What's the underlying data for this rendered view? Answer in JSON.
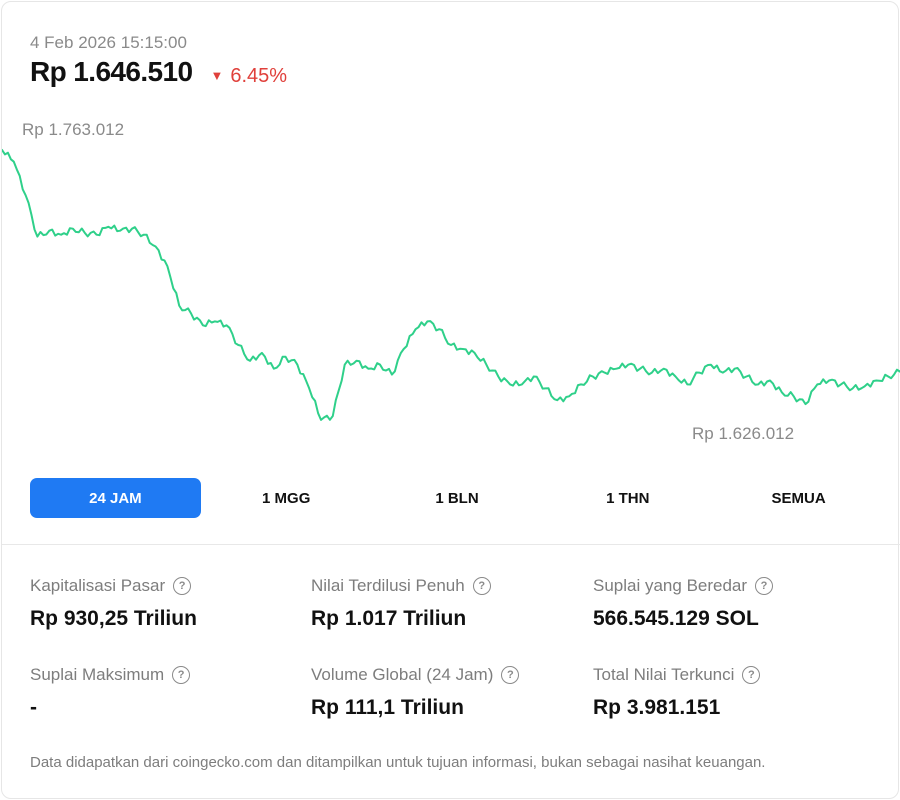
{
  "header": {
    "timestamp": "4 Feb 2026 15:15:00",
    "price": "Rp 1.646.510",
    "change": "6.45%",
    "change_direction_icon": "triangle-down-icon"
  },
  "chart": {
    "high_label": "Rp 1.763.012",
    "low_label": "Rp 1.626.012",
    "line_color": "#2fd08a"
  },
  "chart_data": {
    "type": "line",
    "title": "",
    "xlabel": "",
    "ylabel": "",
    "ylim": [
      1626012,
      1763012
    ],
    "series": [
      {
        "values": [
          1759000,
          1753000,
          1736000,
          1715000,
          1718000,
          1716000,
          1719000,
          1717000,
          1716000,
          1720000,
          1718000,
          1719000,
          1716000,
          1710000,
          1700000,
          1680000,
          1676000,
          1670000,
          1672000,
          1670000,
          1660000,
          1652000,
          1656000,
          1648000,
          1654000,
          1650000,
          1638000,
          1622000,
          1624000,
          1650000,
          1652000,
          1648000,
          1650000,
          1645000,
          1658000,
          1668000,
          1672000,
          1668000,
          1660000,
          1658000,
          1656000,
          1650000,
          1644000,
          1640000,
          1640000,
          1644000,
          1638000,
          1632000,
          1634000,
          1640000,
          1644000,
          1646000,
          1648000,
          1650000,
          1648000,
          1646000,
          1648000,
          1644000,
          1640000,
          1646000,
          1650000,
          1646000,
          1648000,
          1644000,
          1640000,
          1642000,
          1636000,
          1634000,
          1630000,
          1640000,
          1642000,
          1640000,
          1638000,
          1639000,
          1642000,
          1644000,
          1646510
        ]
      }
    ]
  },
  "ranges": [
    {
      "label": "24 JAM",
      "active": true
    },
    {
      "label": "1 MGG",
      "active": false
    },
    {
      "label": "1 BLN",
      "active": false
    },
    {
      "label": "1 THN",
      "active": false
    },
    {
      "label": "SEMUA",
      "active": false
    }
  ],
  "stats": [
    {
      "label": "Kapitalisasi Pasar",
      "value": "Rp 930,25 Triliun"
    },
    {
      "label": "Nilai Terdilusi Penuh",
      "value": "Rp 1.017 Triliun"
    },
    {
      "label": "Suplai yang Beredar",
      "value": "566.545.129 SOL"
    },
    {
      "label": "Suplai Maksimum",
      "value": "-"
    },
    {
      "label": "Volume Global (24 Jam)",
      "value": "Rp 111,1 Triliun"
    },
    {
      "label": "Total Nilai Terkunci",
      "value": "Rp 3.981.151"
    }
  ],
  "help_icon_glyph": "?",
  "disclaimer": "Data didapatkan dari coingecko.com dan ditampilkan untuk tujuan informasi, bukan sebagai nasihat keuangan."
}
